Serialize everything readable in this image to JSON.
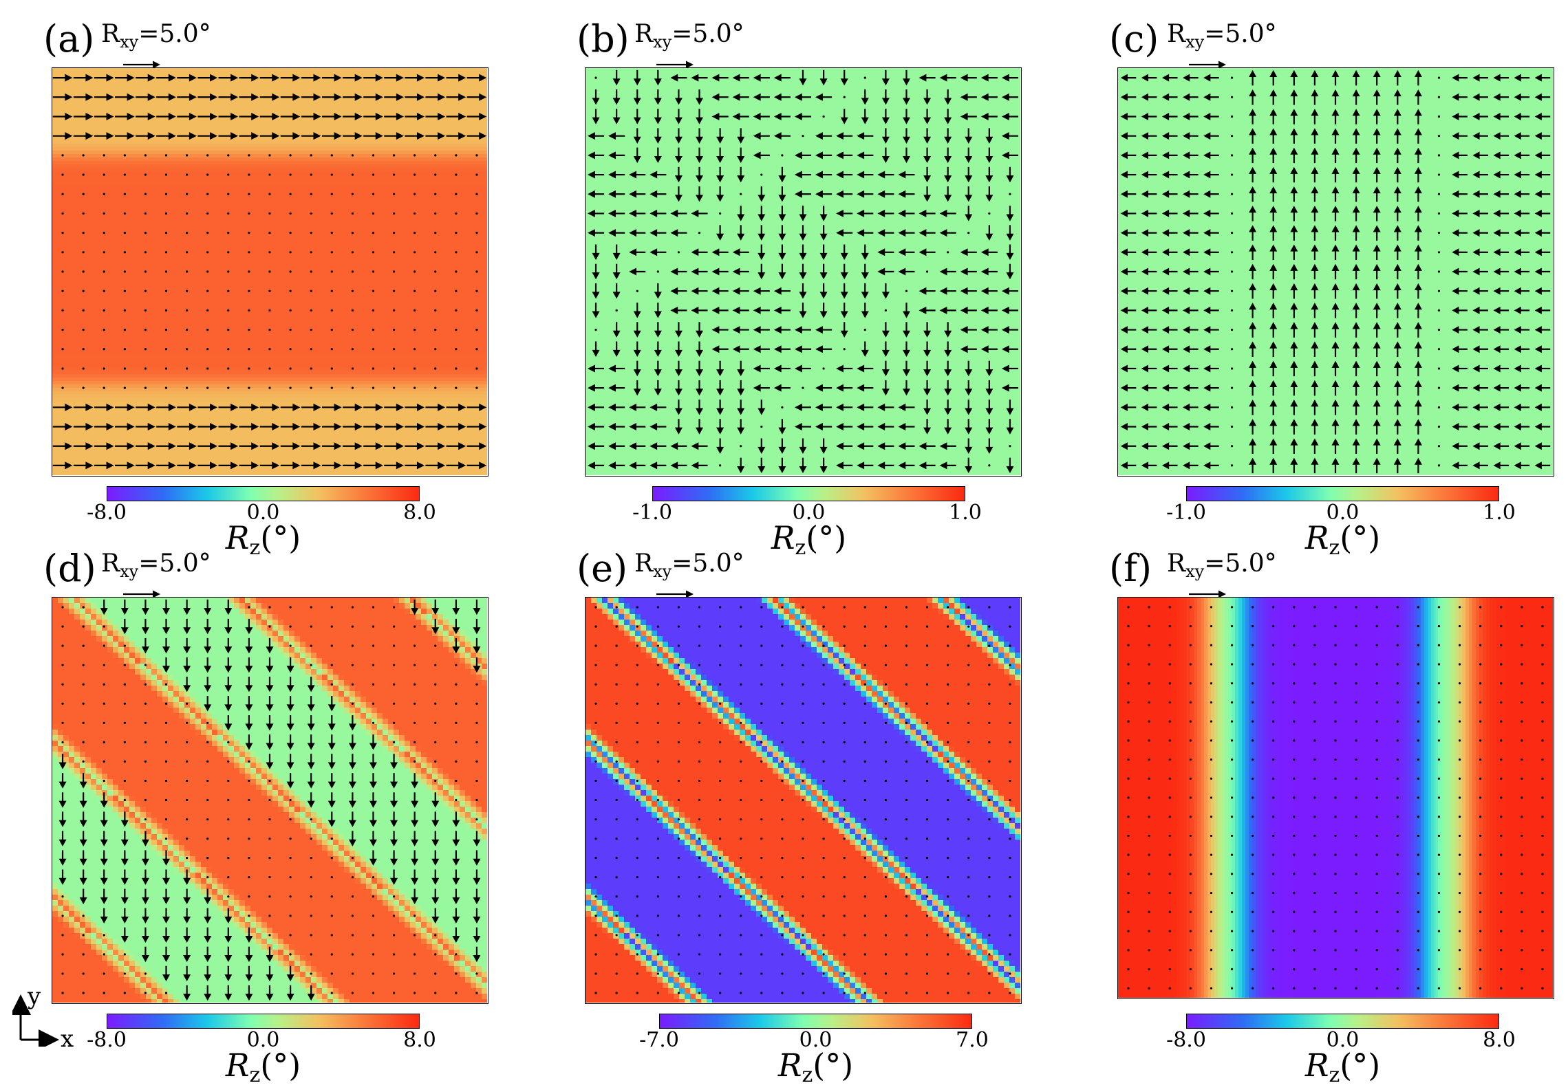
{
  "figure": {
    "axes_indicator": {
      "x_label": "x",
      "y_label": "y"
    },
    "colorbar_title": {
      "symbol": "R",
      "subscript": "z",
      "unit": "(°)"
    }
  },
  "chart_data": [
    {
      "id": "a",
      "panel_label": "(a)",
      "type": "heatmap",
      "description_field": "Rz field with in-plane vector arrows",
      "scale_text": "R",
      "scale_sub": "xy",
      "scale_value": "=5.0°",
      "scale_arrow_magnitude_deg": 5.0,
      "colorbar": {
        "min": -8.0,
        "max": 8.0,
        "ticks": [
          "-8.0",
          "0.0",
          "8.0"
        ]
      },
      "field_pattern": "horizontal-band",
      "band_rz_values": [
        3.0,
        6.0,
        3.0
      ],
      "band_y_fraction": [
        0.0,
        0.21,
        0.77,
        1.0
      ],
      "arrow_direction_outer_bands": "+x",
      "arrow_magnitude_outer_bands_deg": 4.8
    },
    {
      "id": "b",
      "panel_label": "(b)",
      "type": "heatmap",
      "scale_text": "R",
      "scale_sub": "xy",
      "scale_value": "=5.0°",
      "scale_arrow_magnitude_deg": 5.0,
      "colorbar": {
        "min": -1.0,
        "max": 1.0,
        "ticks": [
          "-1.0",
          "0.0",
          "1.0"
        ]
      },
      "field_pattern": "uniform",
      "uniform_rz": 0.0,
      "arrow_pattern": "staircase-left-down"
    },
    {
      "id": "c",
      "panel_label": "(c)",
      "type": "heatmap",
      "scale_text": "R",
      "scale_sub": "xy",
      "scale_value": "=5.0°",
      "scale_arrow_magnitude_deg": 5.0,
      "colorbar": {
        "min": -1.0,
        "max": 1.0,
        "ticks": [
          "-1.0",
          "0.0",
          "1.0"
        ]
      },
      "field_pattern": "uniform",
      "uniform_rz": 0.0,
      "arrow_pattern": "left-up-left-columns"
    },
    {
      "id": "d",
      "panel_label": "(d)",
      "type": "heatmap",
      "scale_text": "R",
      "scale_sub": "xy",
      "scale_value": "=5.0°",
      "scale_arrow_magnitude_deg": 5.0,
      "colorbar": {
        "min": -8.0,
        "max": 8.0,
        "ticks": [
          "-8.0",
          "0.0",
          "8.0"
        ]
      },
      "field_pattern": "diagonal-stripes",
      "stripe_values": [
        6.0,
        0.0
      ],
      "arrow_direction_in_green": "-y"
    },
    {
      "id": "e",
      "panel_label": "(e)",
      "type": "heatmap",
      "scale_text": "R",
      "scale_sub": "xy",
      "scale_value": "=5.0°",
      "scale_arrow_magnitude_deg": 5.0,
      "colorbar": {
        "min": -7.0,
        "max": 7.0,
        "ticks": [
          "-7.0",
          "0.0",
          "7.0"
        ]
      },
      "field_pattern": "diagonal-stripes",
      "stripe_values": [
        6.0,
        -6.0
      ],
      "arrow_direction_in_green": "none"
    },
    {
      "id": "f",
      "panel_label": "(f)",
      "type": "heatmap",
      "scale_text": "R",
      "scale_sub": "xy",
      "scale_value": "=5.0°",
      "scale_arrow_magnitude_deg": 5.0,
      "colorbar": {
        "min": -8.0,
        "max": 8.0,
        "ticks": [
          "-8.0",
          "0.0",
          "8.0"
        ]
      },
      "field_pattern": "vertical-bands",
      "band_rz_values": [
        8.0,
        0.0,
        -8.0,
        0.0,
        8.0
      ]
    }
  ]
}
